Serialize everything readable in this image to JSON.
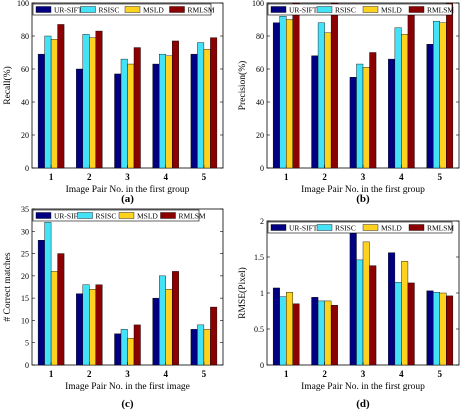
{
  "colors": {
    "UR-SIFT": "#000080",
    "RSISC": "#44e2f7",
    "MSLD": "#ffd21f",
    "RMLSM": "#8b0000"
  },
  "chart_data": [
    {
      "type": "bar",
      "caption": "(a)",
      "ylabel": "Recall(%)",
      "xlabel": "Image Pair No. in the first group",
      "categories": [
        "1",
        "2",
        "3",
        "4",
        "5"
      ],
      "ylim": [
        0,
        100
      ],
      "yticks": [
        "0",
        "20",
        "40",
        "60",
        "80",
        "100"
      ],
      "ytick_values": [
        0,
        20,
        40,
        60,
        80,
        100
      ],
      "legend": [
        "UR-SIFT",
        "RSISC",
        "MSLD",
        "RMLSM"
      ],
      "series": [
        {
          "name": "UR-SIFT",
          "values": [
            69,
            60,
            57,
            63,
            69
          ]
        },
        {
          "name": "RSISC",
          "values": [
            80,
            81,
            66,
            69,
            76
          ]
        },
        {
          "name": "MSLD",
          "values": [
            78,
            79,
            63,
            68,
            72
          ]
        },
        {
          "name": "RMLSM",
          "values": [
            87,
            83,
            73,
            77,
            79
          ]
        }
      ]
    },
    {
      "type": "bar",
      "caption": "(b)",
      "ylabel": "Precision(%)",
      "xlabel": "Image Pair No. in the first group",
      "categories": [
        "1",
        "2",
        "3",
        "4",
        "5"
      ],
      "ylim": [
        0,
        100
      ],
      "yticks": [
        "0",
        "20",
        "40",
        "60",
        "80",
        "100"
      ],
      "ytick_values": [
        0,
        20,
        40,
        60,
        80,
        100
      ],
      "legend": [
        "UR-SIFT",
        "RSISC",
        "MSLD",
        "RMLSM"
      ],
      "series": [
        {
          "name": "UR-SIFT",
          "values": [
            88,
            68,
            55,
            66,
            75
          ]
        },
        {
          "name": "RSISC",
          "values": [
            92,
            88,
            63,
            85,
            89
          ]
        },
        {
          "name": "MSLD",
          "values": [
            90,
            82,
            61,
            81,
            88
          ]
        },
        {
          "name": "RMLSM",
          "values": [
            100,
            100,
            70,
            95,
            100
          ]
        }
      ]
    },
    {
      "type": "bar",
      "caption": "(c)",
      "ylabel": "# Correct matches",
      "xlabel": "Image Pair No. in the first image",
      "categories": [
        "1",
        "2",
        "3",
        "4",
        "5"
      ],
      "ylim": [
        0,
        35
      ],
      "yticks": [
        "0",
        "5",
        "10",
        "15",
        "20",
        "25",
        "30",
        "35"
      ],
      "ytick_values": [
        0,
        5,
        10,
        15,
        20,
        25,
        30,
        35
      ],
      "legend": [
        "UR-SIFT",
        "RSISC",
        "MSLD",
        "RMLSM"
      ],
      "series": [
        {
          "name": "UR-SIFT",
          "values": [
            28,
            16,
            7,
            15,
            8
          ]
        },
        {
          "name": "RSISC",
          "values": [
            32,
            18,
            8,
            20,
            9
          ]
        },
        {
          "name": "MSLD",
          "values": [
            21,
            17,
            6,
            17,
            8
          ]
        },
        {
          "name": "RMLSM",
          "values": [
            25,
            18,
            9,
            21,
            13
          ]
        }
      ]
    },
    {
      "type": "bar",
      "caption": "(d)",
      "ylabel": "RMSE(Pixel)",
      "xlabel": "Image Pair No. in the first group",
      "categories": [
        "1",
        "2",
        "3",
        "4",
        "5"
      ],
      "ylim": [
        0,
        2
      ],
      "yticks": [
        "0",
        "0.5",
        "1",
        "1.5",
        "2"
      ],
      "ytick_values": [
        0,
        0.5,
        1,
        1.5,
        2
      ],
      "legend": [
        "UR-SIFT",
        "RSISC",
        "MSLD",
        "RMLSM"
      ],
      "series": [
        {
          "name": "UR-SIFT",
          "values": [
            1.07,
            0.94,
            1.9,
            1.56,
            1.03
          ]
        },
        {
          "name": "RSISC",
          "values": [
            0.95,
            0.89,
            1.46,
            1.15,
            1.01
          ]
        },
        {
          "name": "MSLD",
          "values": [
            1.01,
            0.89,
            1.71,
            1.44,
            1.0
          ]
        },
        {
          "name": "RMLSM",
          "values": [
            0.85,
            0.83,
            1.38,
            1.14,
            0.96
          ]
        }
      ]
    }
  ]
}
